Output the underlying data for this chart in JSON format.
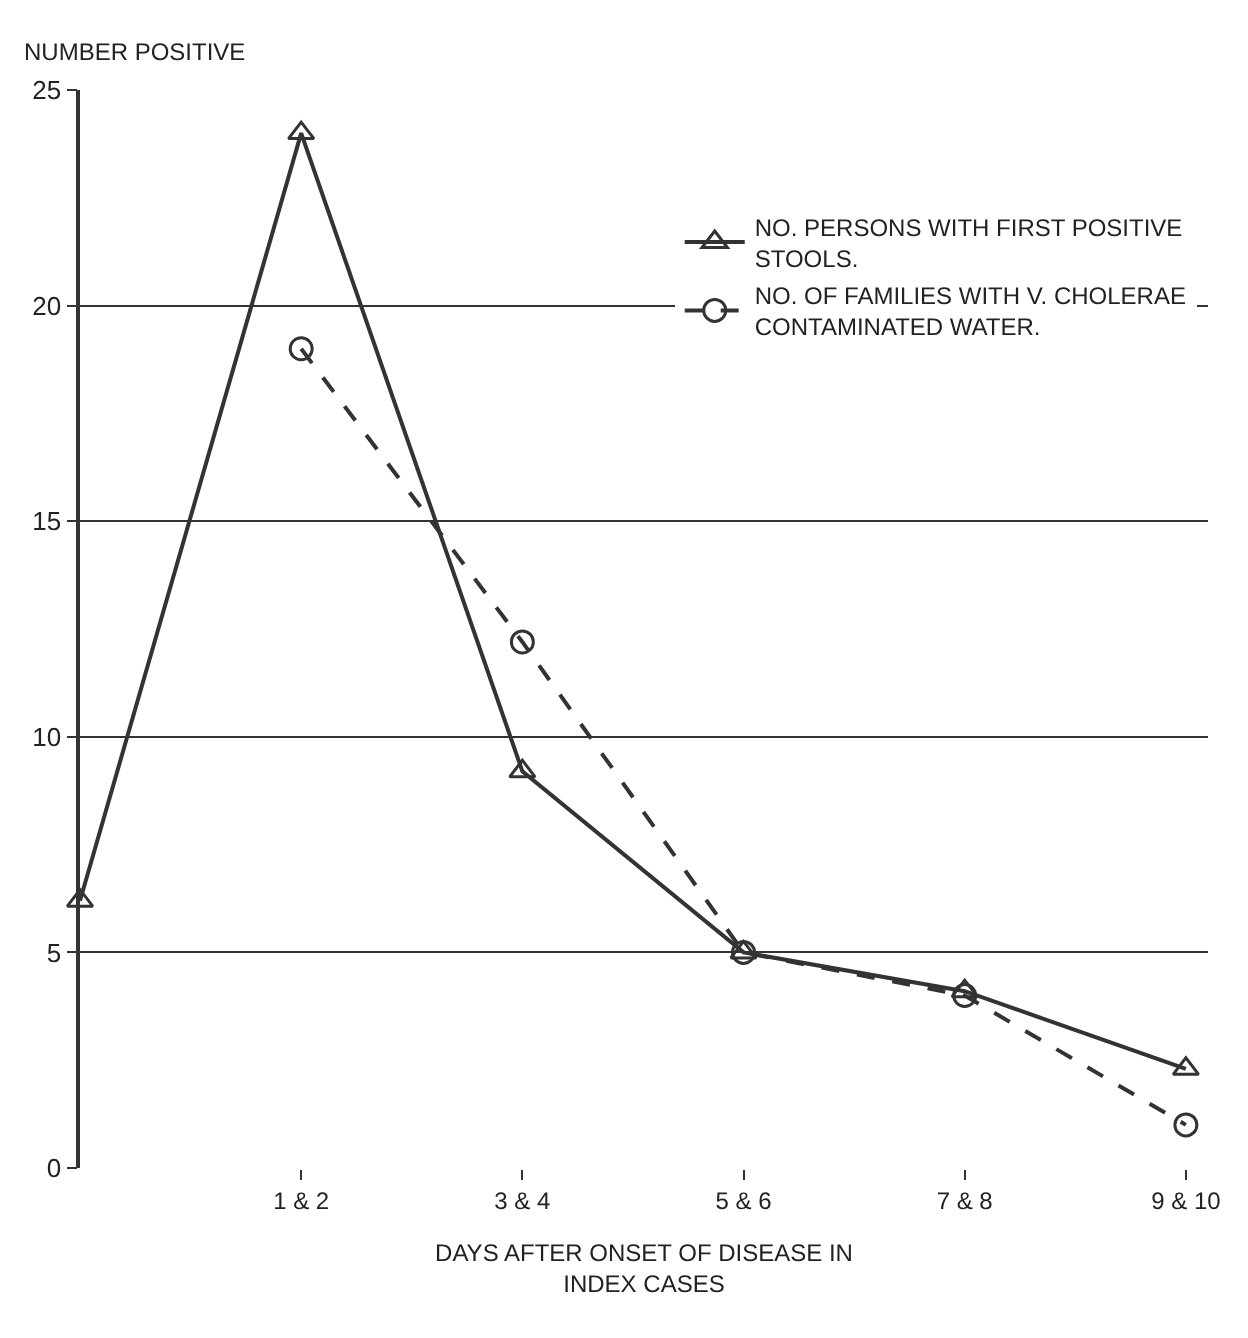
{
  "chart_data": {
    "type": "line",
    "ylabel": "NUMBER POSITIVE",
    "xlabel": "DAYS AFTER ONSET OF DISEASE IN\nINDEX CASES",
    "categories": [
      null,
      "1 & 2",
      "3 & 4",
      "5 & 6",
      "7 & 8",
      "9 & 10"
    ],
    "series": [
      {
        "name": "NO. PERSONS WITH FIRST POSITIVE\nSTOOLS.",
        "color": "#333333",
        "values": [
          6.2,
          24,
          9.2,
          5,
          4.1,
          2.3
        ],
        "marker": "triangle",
        "line_style": "solid"
      },
      {
        "name": "NO. OF FAMILIES WITH V. CHOLERAE\nCONTAMINATED WATER.",
        "color": "#333333",
        "values": [
          null,
          19,
          12.2,
          5,
          4,
          1.0
        ],
        "marker": "circle",
        "line_style": "dashed"
      }
    ],
    "ylim": [
      0,
      25
    ],
    "yticks": [
      0,
      5,
      10,
      15,
      20,
      25
    ],
    "grid": "y",
    "legend": "top right"
  }
}
